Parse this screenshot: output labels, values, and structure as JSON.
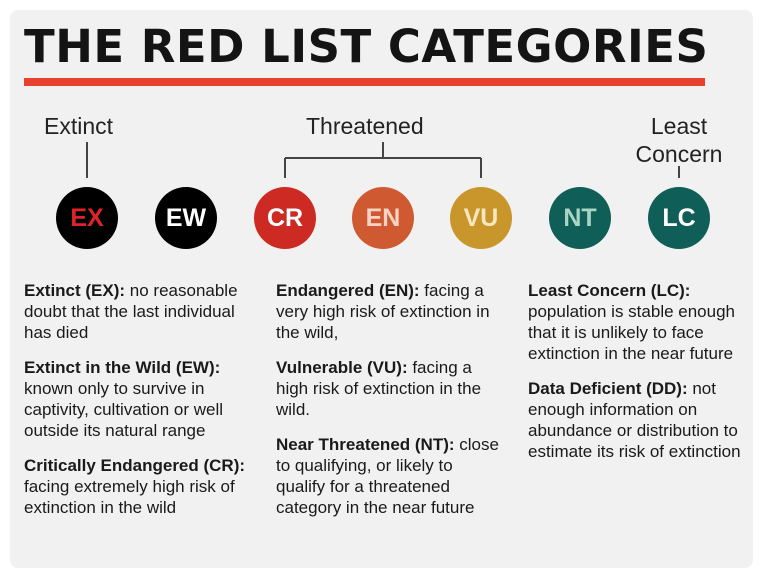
{
  "title": "THE RED LIST CATEGORIES",
  "colors": {
    "accent_bar": "#e8412f",
    "EX": {
      "bg": "#000000",
      "text": "#e0232b"
    },
    "EW": {
      "bg": "#000000",
      "text": "#ffffff"
    },
    "CR": {
      "bg": "#cc2a22",
      "text": "#ffffff"
    },
    "EN": {
      "bg": "#cf5a32",
      "text": "#f6d3c2"
    },
    "VU": {
      "bg": "#c8962b",
      "text": "#f7e7bf"
    },
    "NT": {
      "bg": "#0f5e57",
      "text": "#a9d4c6"
    },
    "LC": {
      "bg": "#0f5e57",
      "text": "#ffffff"
    }
  },
  "groups": {
    "extinct": "Extinct",
    "threatened": "Threatened",
    "least_concern_line1": "Least",
    "least_concern_line2": "Concern"
  },
  "categories": [
    {
      "code": "EX"
    },
    {
      "code": "EW"
    },
    {
      "code": "CR"
    },
    {
      "code": "EN"
    },
    {
      "code": "VU"
    },
    {
      "code": "NT"
    },
    {
      "code": "LC"
    }
  ],
  "definitions": {
    "ex_term": "Extinct (EX):",
    "ex_text": " no reasonable doubt that the last individual has died",
    "ew_term": "Extinct in the Wild (EW):",
    "ew_text": " known only to survive in captivity, cultivation or well outside its natural range",
    "cr_term": "Critically Endangered (CR):",
    "cr_text": " facing extremely high risk of extinction in the wild",
    "en_term": "Endangered (EN):",
    "en_text": " facing a very high risk of extinction in the wild,",
    "vu_term": "Vulnerable (VU):",
    "vu_text": " facing a high risk of extinction in the wild.",
    "nt_term": "Near Threatened (NT):",
    "nt_text": " close to qualifying, or likely to qualify for a threatened category in the near future",
    "lc_term": "Least Concern (LC):",
    "lc_text": " population is stable enough that it is unlikely to face extinction in the near future",
    "dd_term": "Data Deficient (DD):",
    "dd_text": " not enough information on abundance or distribution to estimate its risk of extinction"
  }
}
